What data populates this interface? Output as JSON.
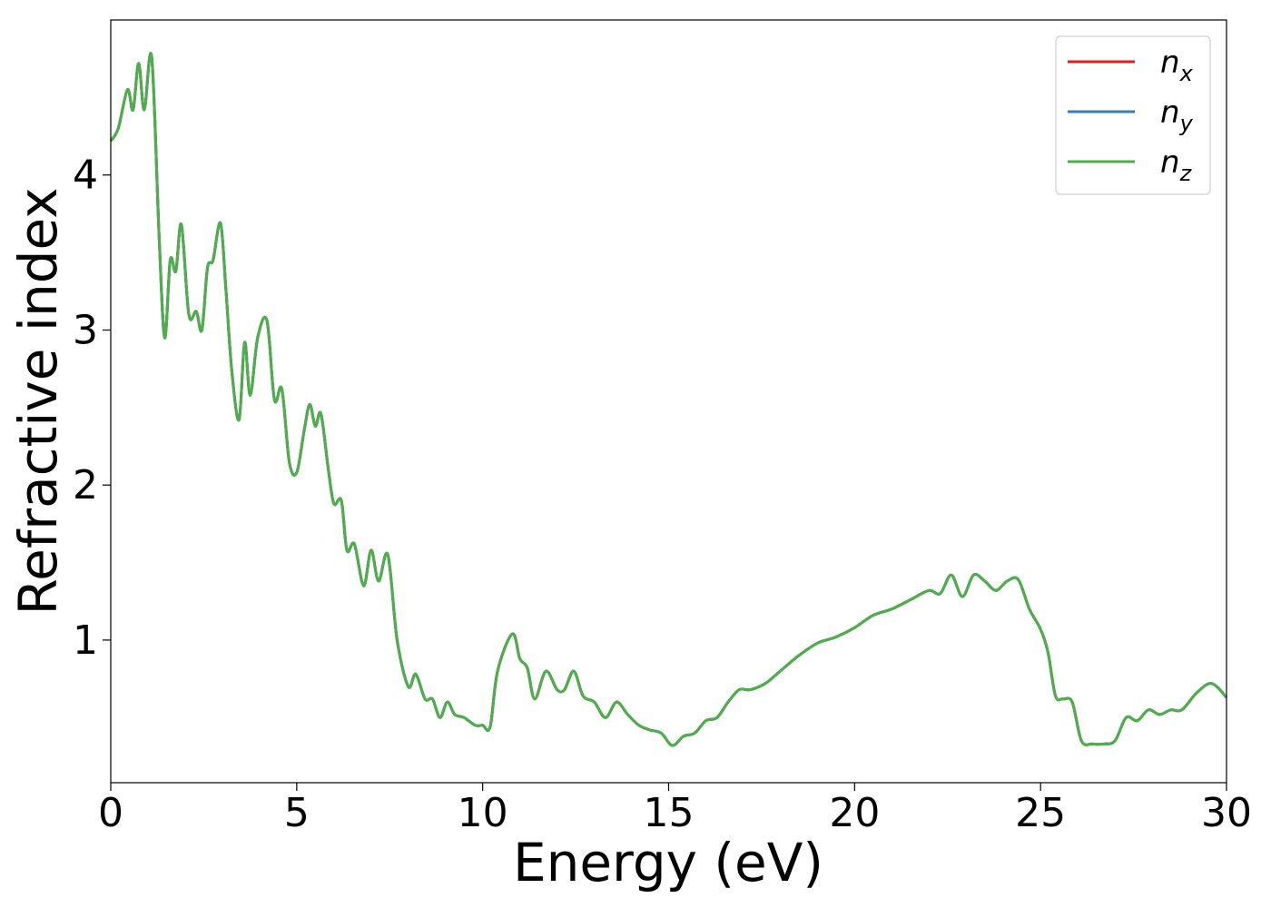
{
  "chart_data": {
    "type": "line",
    "title": "",
    "xlabel": "Energy (eV)",
    "ylabel": "Refractive index",
    "xlim": [
      0,
      30
    ],
    "ylim": [
      0.08,
      5.0
    ],
    "xticks": [
      0,
      5,
      10,
      15,
      20,
      25,
      30
    ],
    "yticks": [
      1,
      2,
      3,
      4
    ],
    "grid": false,
    "legend_position": "top-right",
    "series": [
      {
        "name": "n_x",
        "base": "n",
        "sub": "x",
        "color": "#e41a1c",
        "x": [
          0,
          0.2,
          0.45,
          0.6,
          0.75,
          0.9,
          1.1,
          1.3,
          1.45,
          1.6,
          1.75,
          1.9,
          2.1,
          2.3,
          2.45,
          2.6,
          2.75,
          2.95,
          3.1,
          3.25,
          3.45,
          3.6,
          3.75,
          3.95,
          4.2,
          4.4,
          4.6,
          4.8,
          5.0,
          5.2,
          5.35,
          5.5,
          5.65,
          5.85,
          6.0,
          6.2,
          6.35,
          6.55,
          6.8,
          7.0,
          7.2,
          7.45,
          7.7,
          8.0,
          8.2,
          8.45,
          8.65,
          8.85,
          9.05,
          9.25,
          9.5,
          9.8,
          10.0,
          10.2,
          10.4,
          10.8,
          11.0,
          11.2,
          11.4,
          11.7,
          12.0,
          12.2,
          12.45,
          12.7,
          13.0,
          13.3,
          13.6,
          13.9,
          14.2,
          14.5,
          14.8,
          15.1,
          15.4,
          15.7,
          16.0,
          16.3,
          16.6,
          16.9,
          17.2,
          17.6,
          18.0,
          18.5,
          19.0,
          19.5,
          20.0,
          20.5,
          21.0,
          21.5,
          22.0,
          22.3,
          22.6,
          22.9,
          23.2,
          23.5,
          23.8,
          24.1,
          24.4,
          24.7,
          25.0,
          25.2,
          25.4,
          25.6,
          25.85,
          26.1,
          26.4,
          26.7,
          27.0,
          27.3,
          27.6,
          27.9,
          28.2,
          28.5,
          28.8,
          29.2,
          29.6,
          30.0
        ],
        "y": [
          4.22,
          4.3,
          4.55,
          4.42,
          4.72,
          4.42,
          4.76,
          3.6,
          2.95,
          3.45,
          3.38,
          3.68,
          3.1,
          3.12,
          3.0,
          3.4,
          3.45,
          3.69,
          3.25,
          2.75,
          2.42,
          2.92,
          2.58,
          2.95,
          3.06,
          2.55,
          2.62,
          2.15,
          2.08,
          2.35,
          2.52,
          2.38,
          2.46,
          2.1,
          1.88,
          1.9,
          1.58,
          1.62,
          1.35,
          1.58,
          1.38,
          1.55,
          1.0,
          0.7,
          0.78,
          0.62,
          0.62,
          0.5,
          0.6,
          0.52,
          0.5,
          0.45,
          0.45,
          0.44,
          0.8,
          1.04,
          0.88,
          0.82,
          0.62,
          0.8,
          0.68,
          0.68,
          0.8,
          0.64,
          0.6,
          0.5,
          0.6,
          0.52,
          0.45,
          0.42,
          0.4,
          0.32,
          0.38,
          0.4,
          0.48,
          0.5,
          0.6,
          0.68,
          0.68,
          0.72,
          0.8,
          0.9,
          0.98,
          1.02,
          1.08,
          1.16,
          1.2,
          1.26,
          1.32,
          1.3,
          1.42,
          1.28,
          1.42,
          1.38,
          1.32,
          1.38,
          1.39,
          1.2,
          1.07,
          0.92,
          0.64,
          0.62,
          0.6,
          0.35,
          0.33,
          0.33,
          0.35,
          0.5,
          0.48,
          0.55,
          0.52,
          0.55,
          0.55,
          0.66,
          0.72,
          0.63
        ]
      },
      {
        "name": "n_y",
        "base": "n",
        "sub": "y",
        "color": "#377eb8",
        "x": [
          0,
          0.2,
          0.45,
          0.6,
          0.75,
          0.9,
          1.1,
          1.3,
          1.45,
          1.6,
          1.75,
          1.9,
          2.1,
          2.3,
          2.45,
          2.6,
          2.75,
          2.95,
          3.1,
          3.25,
          3.45,
          3.6,
          3.75,
          3.95,
          4.2,
          4.4,
          4.6,
          4.8,
          5.0,
          5.2,
          5.35,
          5.5,
          5.65,
          5.85,
          6.0,
          6.2,
          6.35,
          6.55,
          6.8,
          7.0,
          7.2,
          7.45,
          7.7,
          8.0,
          8.2,
          8.45,
          8.65,
          8.85,
          9.05,
          9.25,
          9.5,
          9.8,
          10.0,
          10.2,
          10.4,
          10.8,
          11.0,
          11.2,
          11.4,
          11.7,
          12.0,
          12.2,
          12.45,
          12.7,
          13.0,
          13.3,
          13.6,
          13.9,
          14.2,
          14.5,
          14.8,
          15.1,
          15.4,
          15.7,
          16.0,
          16.3,
          16.6,
          16.9,
          17.2,
          17.6,
          18.0,
          18.5,
          19.0,
          19.5,
          20.0,
          20.5,
          21.0,
          21.5,
          22.0,
          22.3,
          22.6,
          22.9,
          23.2,
          23.5,
          23.8,
          24.1,
          24.4,
          24.7,
          25.0,
          25.2,
          25.4,
          25.6,
          25.85,
          26.1,
          26.4,
          26.7,
          27.0,
          27.3,
          27.6,
          27.9,
          28.2,
          28.5,
          28.8,
          29.2,
          29.6,
          30.0
        ],
        "y": [
          4.22,
          4.3,
          4.55,
          4.42,
          4.72,
          4.42,
          4.76,
          3.6,
          2.95,
          3.45,
          3.38,
          3.68,
          3.1,
          3.12,
          3.0,
          3.4,
          3.45,
          3.69,
          3.25,
          2.75,
          2.42,
          2.92,
          2.58,
          2.95,
          3.06,
          2.55,
          2.62,
          2.15,
          2.08,
          2.35,
          2.52,
          2.38,
          2.46,
          2.1,
          1.88,
          1.9,
          1.58,
          1.62,
          1.35,
          1.58,
          1.38,
          1.55,
          1.0,
          0.7,
          0.78,
          0.62,
          0.62,
          0.5,
          0.6,
          0.52,
          0.5,
          0.45,
          0.45,
          0.44,
          0.8,
          1.04,
          0.88,
          0.82,
          0.62,
          0.8,
          0.68,
          0.68,
          0.8,
          0.64,
          0.6,
          0.5,
          0.6,
          0.52,
          0.45,
          0.42,
          0.4,
          0.32,
          0.38,
          0.4,
          0.48,
          0.5,
          0.6,
          0.68,
          0.68,
          0.72,
          0.8,
          0.9,
          0.98,
          1.02,
          1.08,
          1.16,
          1.2,
          1.26,
          1.32,
          1.3,
          1.42,
          1.28,
          1.42,
          1.38,
          1.32,
          1.38,
          1.39,
          1.2,
          1.07,
          0.92,
          0.64,
          0.62,
          0.6,
          0.35,
          0.33,
          0.33,
          0.35,
          0.5,
          0.48,
          0.55,
          0.52,
          0.55,
          0.55,
          0.66,
          0.72,
          0.63
        ]
      },
      {
        "name": "n_z",
        "base": "n",
        "sub": "z",
        "color": "#4daf4a",
        "x": [
          0,
          0.2,
          0.45,
          0.6,
          0.75,
          0.9,
          1.1,
          1.3,
          1.45,
          1.6,
          1.75,
          1.9,
          2.1,
          2.3,
          2.45,
          2.6,
          2.75,
          2.95,
          3.1,
          3.25,
          3.45,
          3.6,
          3.75,
          3.95,
          4.2,
          4.4,
          4.6,
          4.8,
          5.0,
          5.2,
          5.35,
          5.5,
          5.65,
          5.85,
          6.0,
          6.2,
          6.35,
          6.55,
          6.8,
          7.0,
          7.2,
          7.45,
          7.7,
          8.0,
          8.2,
          8.45,
          8.65,
          8.85,
          9.05,
          9.25,
          9.5,
          9.8,
          10.0,
          10.2,
          10.4,
          10.8,
          11.0,
          11.2,
          11.4,
          11.7,
          12.0,
          12.2,
          12.45,
          12.7,
          13.0,
          13.3,
          13.6,
          13.9,
          14.2,
          14.5,
          14.8,
          15.1,
          15.4,
          15.7,
          16.0,
          16.3,
          16.6,
          16.9,
          17.2,
          17.6,
          18.0,
          18.5,
          19.0,
          19.5,
          20.0,
          20.5,
          21.0,
          21.5,
          22.0,
          22.3,
          22.6,
          22.9,
          23.2,
          23.5,
          23.8,
          24.1,
          24.4,
          24.7,
          25.0,
          25.2,
          25.4,
          25.6,
          25.85,
          26.1,
          26.4,
          26.7,
          27.0,
          27.3,
          27.6,
          27.9,
          28.2,
          28.5,
          28.8,
          29.2,
          29.6,
          30.0
        ],
        "y": [
          4.22,
          4.3,
          4.55,
          4.42,
          4.72,
          4.42,
          4.76,
          3.6,
          2.95,
          3.45,
          3.38,
          3.68,
          3.1,
          3.12,
          3.0,
          3.4,
          3.45,
          3.69,
          3.25,
          2.75,
          2.42,
          2.92,
          2.58,
          2.95,
          3.06,
          2.55,
          2.62,
          2.15,
          2.08,
          2.35,
          2.52,
          2.38,
          2.46,
          2.1,
          1.88,
          1.9,
          1.58,
          1.62,
          1.35,
          1.58,
          1.38,
          1.55,
          1.0,
          0.7,
          0.78,
          0.62,
          0.62,
          0.5,
          0.6,
          0.52,
          0.5,
          0.45,
          0.45,
          0.44,
          0.8,
          1.04,
          0.88,
          0.82,
          0.62,
          0.8,
          0.68,
          0.68,
          0.8,
          0.64,
          0.6,
          0.5,
          0.6,
          0.52,
          0.45,
          0.42,
          0.4,
          0.32,
          0.38,
          0.4,
          0.48,
          0.5,
          0.6,
          0.68,
          0.68,
          0.72,
          0.8,
          0.9,
          0.98,
          1.02,
          1.08,
          1.16,
          1.2,
          1.26,
          1.32,
          1.3,
          1.42,
          1.28,
          1.42,
          1.38,
          1.32,
          1.38,
          1.39,
          1.2,
          1.07,
          0.92,
          0.64,
          0.62,
          0.6,
          0.35,
          0.33,
          0.33,
          0.35,
          0.5,
          0.48,
          0.55,
          0.52,
          0.55,
          0.55,
          0.66,
          0.72,
          0.63
        ]
      }
    ]
  }
}
